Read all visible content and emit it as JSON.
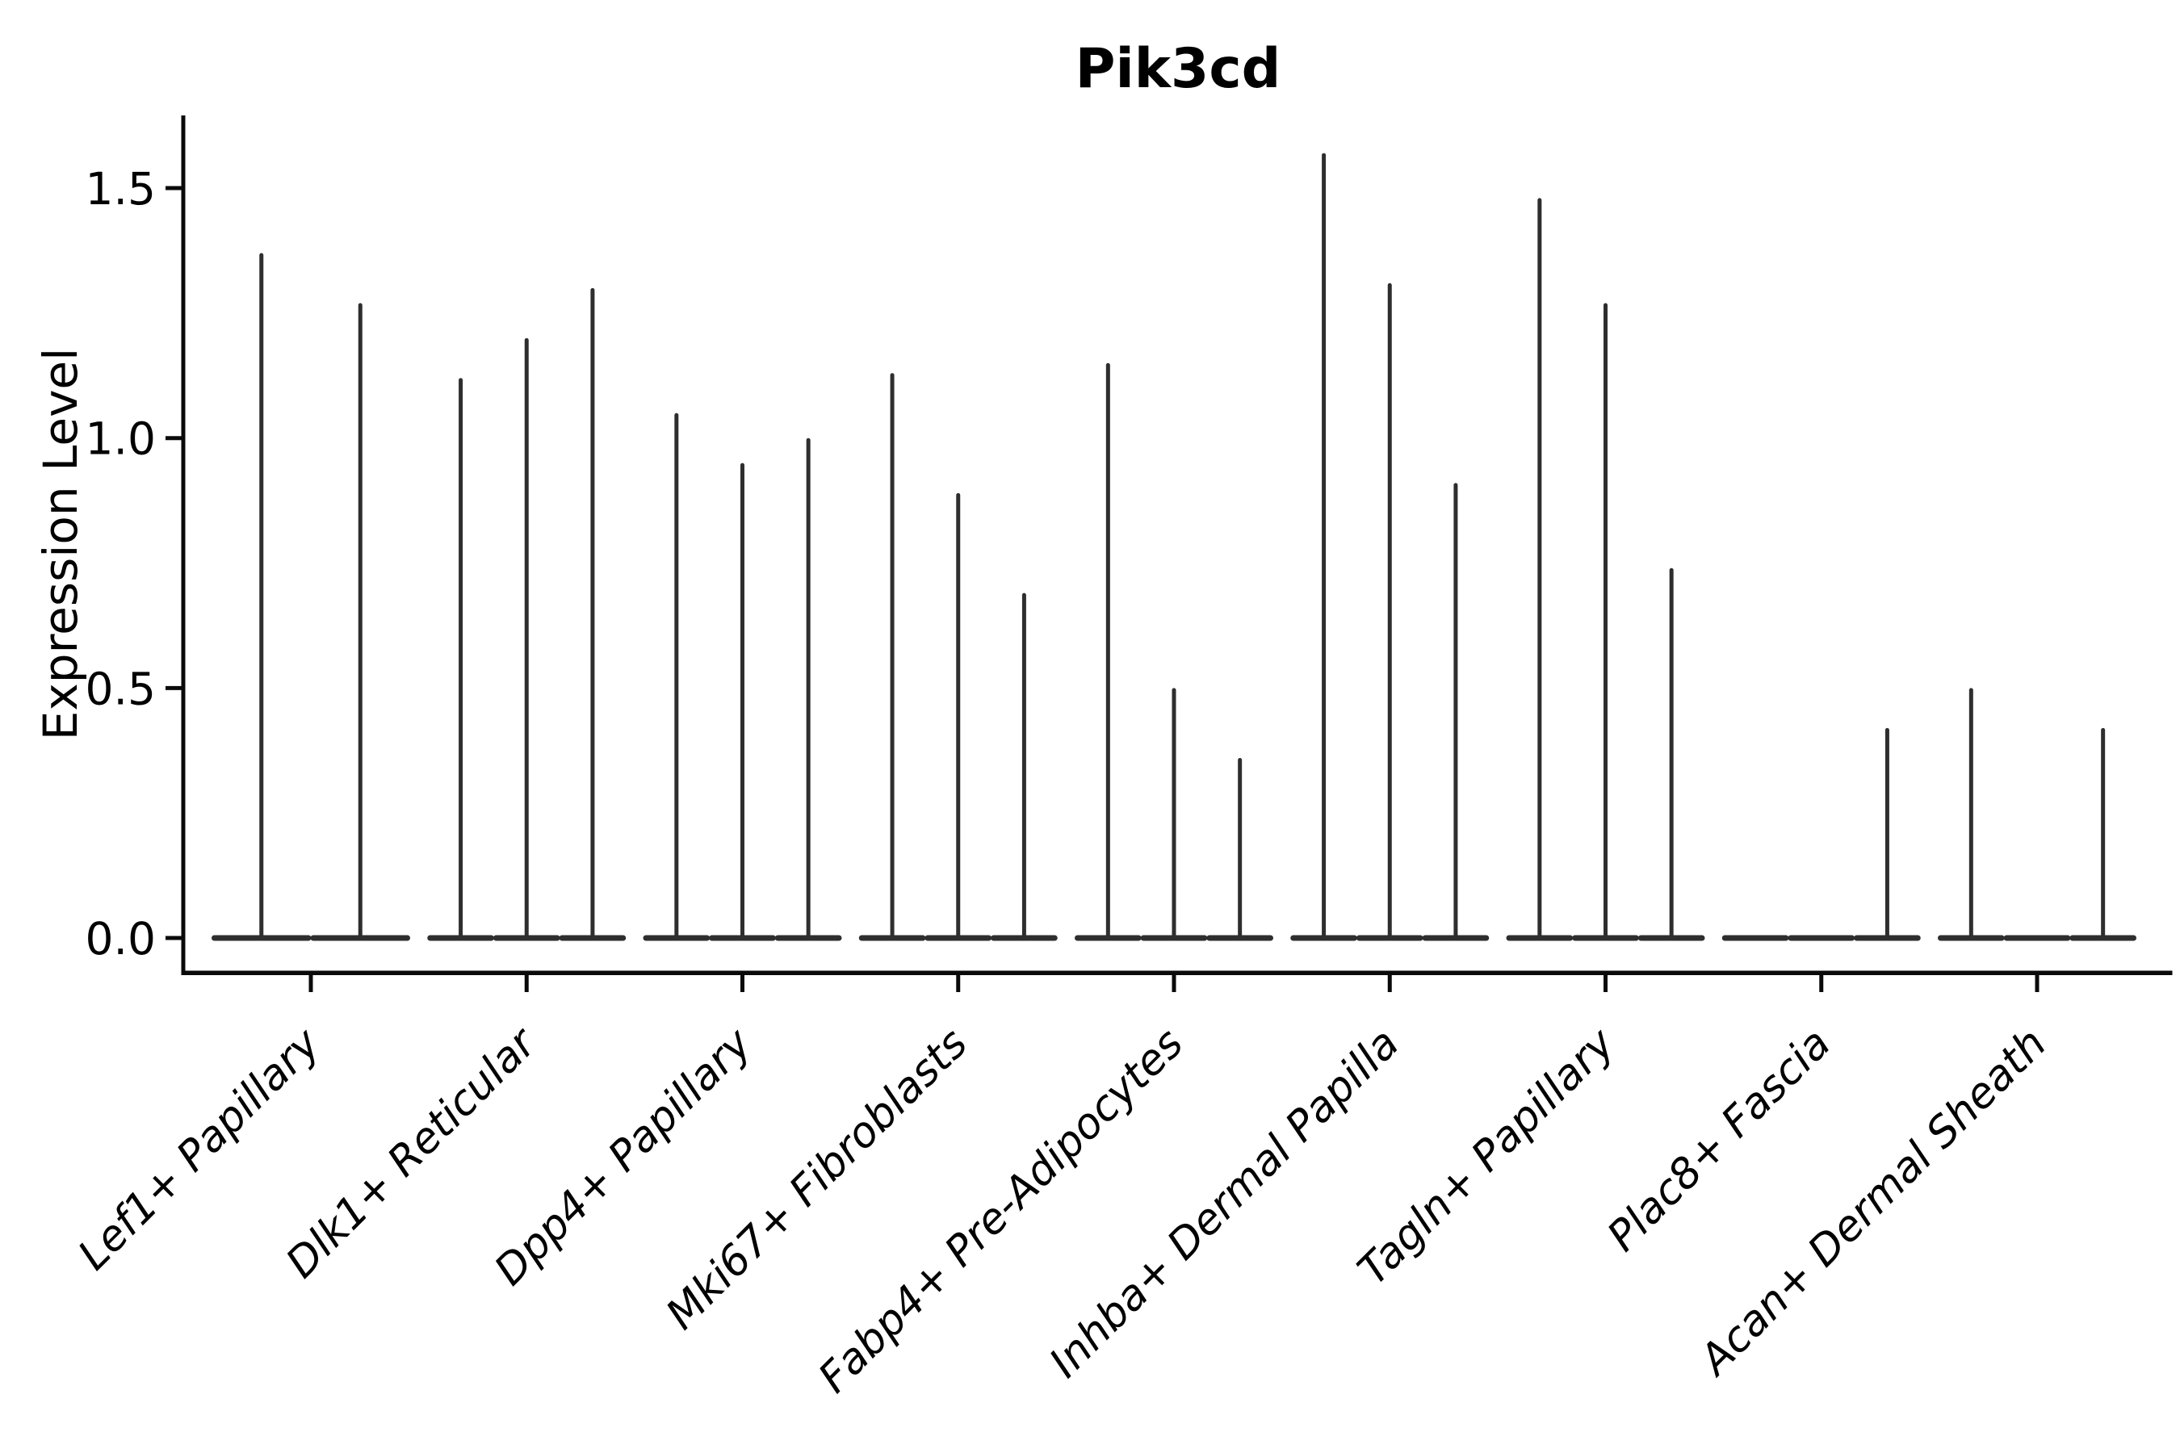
{
  "chart_data": {
    "type": "violin",
    "title": "Pik3cd",
    "xlabel": "",
    "ylabel": "Expression Level",
    "ylim": [
      -0.07,
      1.64
    ],
    "grid": false,
    "legend": "none",
    "axis_color": "#0a0a0a",
    "violin_color": "#2e2e2e",
    "yticks": [
      {
        "value": 0.0,
        "label": "0.0"
      },
      {
        "value": 0.5,
        "label": "0.5"
      },
      {
        "value": 1.0,
        "label": "1.0"
      },
      {
        "value": 1.5,
        "label": "1.5"
      }
    ],
    "categories": [
      "Lef1+ Papillary",
      "Dlk1+ Reticular",
      "Dpp4+ Papillary",
      "Mki67+ Fibroblasts",
      "Fabp4+ Pre-Adipocytes",
      "Inhba+ Dermal Papilla",
      "Tagln+ Papillary",
      "Plac8+ Fascia",
      "Acan+ Dermal Sheath"
    ],
    "groups": [
      {
        "label": "Lef1+ Papillary",
        "violin_peaks": [
          1.37,
          1.27
        ]
      },
      {
        "label": "Dlk1+ Reticular",
        "violin_peaks": [
          1.12,
          1.2,
          1.3
        ]
      },
      {
        "label": "Dpp4+ Papillary",
        "violin_peaks": [
          1.05,
          0.95,
          1.0
        ]
      },
      {
        "label": "Mki67+ Fibroblasts",
        "violin_peaks": [
          1.13,
          0.89,
          0.69
        ]
      },
      {
        "label": "Fabp4+ Pre-Adipocytes",
        "violin_peaks": [
          1.15,
          0.5,
          0.36
        ]
      },
      {
        "label": "Inhba+ Dermal Papilla",
        "violin_peaks": [
          1.57,
          1.31,
          0.91
        ]
      },
      {
        "label": "Tagln+ Papillary",
        "violin_peaks": [
          1.48,
          1.27,
          0.74
        ]
      },
      {
        "label": "Plac8+ Fascia",
        "violin_peaks": [
          0.0,
          0.0,
          0.42
        ]
      },
      {
        "label": "Acan+ Dermal Sheath",
        "violin_peaks": [
          0.5,
          0.0,
          0.42
        ]
      }
    ]
  }
}
